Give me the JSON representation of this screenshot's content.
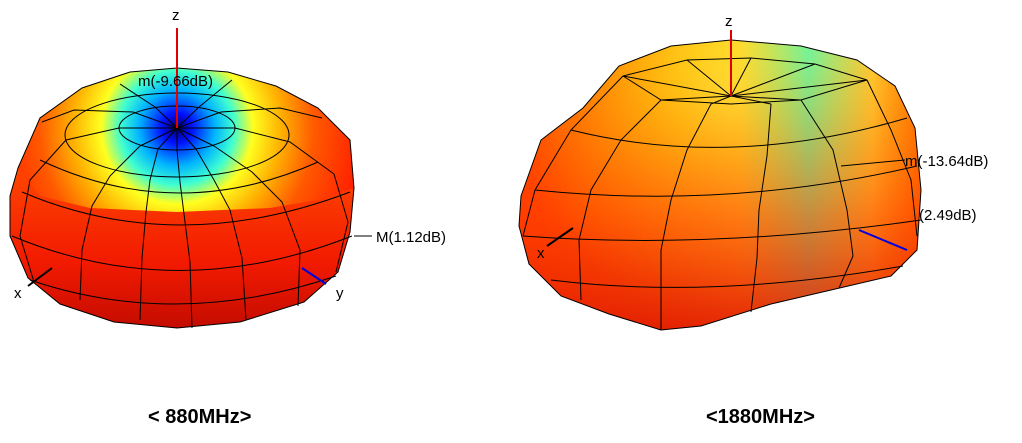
{
  "figure": {
    "left": {
      "caption": "< 880MHz>",
      "axes": {
        "z": "z",
        "x": "x",
        "y": "y"
      },
      "markers": {
        "min": "m(-9.66dB)",
        "max": "M(1.12dB)"
      }
    },
    "right": {
      "caption": "<1880MHz>",
      "axes": {
        "z": "z",
        "x": "x"
      },
      "markers": {
        "min": "m(-13.64dB)",
        "max": "(2.49dB)"
      }
    }
  },
  "colors": {
    "z_axis": "#e00000",
    "y_axis": "#0000e0",
    "mesh": "#000000",
    "colormap": [
      "#00007f",
      "#0000ff",
      "#00ffff",
      "#ffff00",
      "#ff8c00",
      "#ff0000",
      "#b00000"
    ]
  }
}
